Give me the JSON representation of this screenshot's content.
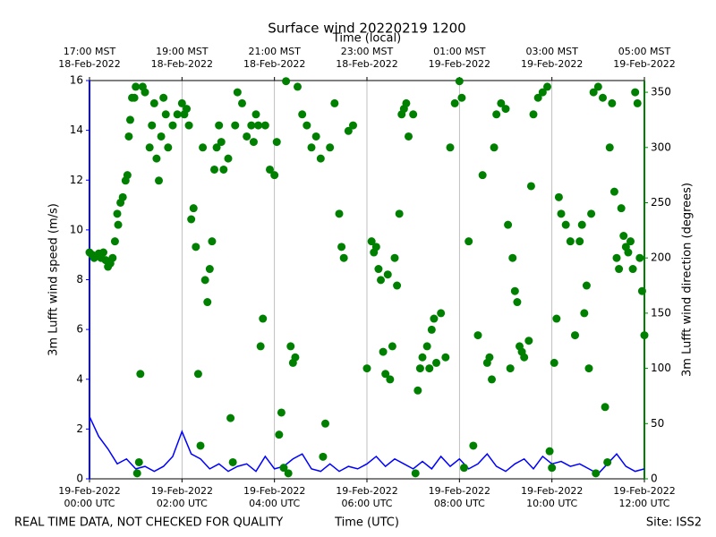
{
  "chart_data": {
    "type": "line_scatter",
    "title": "Surface wind 20220219 1200",
    "xlabel": "Time (UTC)",
    "x2label": "Time (local)",
    "ylabel": "3m Lufft wind speed (m/s)",
    "y2label": "3m Lufft wind direction (degrees)",
    "footer_left": "REAL TIME DATA, NOT CHECKED FOR QUALITY",
    "footer_right": "Site: ISS2",
    "xlim": [
      0,
      12
    ],
    "xticks": [
      {
        "value": 0,
        "label": "19-Feb-2022\n00:00 UTC"
      },
      {
        "value": 2,
        "label": "19-Feb-2022\n02:00 UTC"
      },
      {
        "value": 4,
        "label": "19-Feb-2022\n04:00 UTC"
      },
      {
        "value": 6,
        "label": "19-Feb-2022\n06:00 UTC"
      },
      {
        "value": 8,
        "label": "19-Feb-2022\n08:00 UTC"
      },
      {
        "value": 10,
        "label": "19-Feb-2022\n10:00 UTC"
      },
      {
        "value": 12,
        "label": "19-Feb-2022\n12:00 UTC"
      }
    ],
    "x2ticks": [
      {
        "value": 0,
        "label": "17:00 MST\n18-Feb-2022"
      },
      {
        "value": 2,
        "label": "19:00 MST\n18-Feb-2022"
      },
      {
        "value": 4,
        "label": "21:00 MST\n18-Feb-2022"
      },
      {
        "value": 6,
        "label": "23:00 MST\n18-Feb-2022"
      },
      {
        "value": 8,
        "label": "01:00 MST\n19-Feb-2022"
      },
      {
        "value": 10,
        "label": "03:00 MST\n19-Feb-2022"
      },
      {
        "value": 12,
        "label": "05:00 MST\n19-Feb-2022"
      }
    ],
    "ylim": [
      0,
      16
    ],
    "yticks": [
      0,
      2,
      4,
      6,
      8,
      10,
      12,
      14,
      16
    ],
    "y2lim": [
      0,
      360.6
    ],
    "y2ticks": [
      0,
      50,
      100,
      150,
      200,
      250,
      300,
      350
    ],
    "grid": "x",
    "ycolor": "#0000ff",
    "y2color": "#008000",
    "series": [
      {
        "type": "line",
        "axis": "y",
        "color": "#0000ff",
        "x": [
          0,
          0.2,
          0.4,
          0.6,
          0.8,
          1,
          1.2,
          1.4,
          1.6,
          1.8,
          2,
          2.2,
          2.4,
          2.6,
          2.8,
          3,
          3.2,
          3.4,
          3.6,
          3.8,
          4,
          4.2,
          4.4,
          4.6,
          4.8,
          5,
          5.2,
          5.4,
          5.6,
          5.8,
          6,
          6.2,
          6.4,
          6.6,
          6.8,
          7,
          7.2,
          7.4,
          7.6,
          7.8,
          8,
          8.2,
          8.4,
          8.6,
          8.8,
          9,
          9.2,
          9.4,
          9.6,
          9.8,
          10,
          10.2,
          10.4,
          10.6,
          10.8,
          11,
          11.2,
          11.4,
          11.6,
          11.8,
          12
        ],
        "values": [
          2.5,
          1.7,
          1.2,
          0.6,
          0.8,
          0.4,
          0.5,
          0.3,
          0.5,
          0.9,
          1.9,
          1.0,
          0.8,
          0.4,
          0.6,
          0.3,
          0.5,
          0.6,
          0.3,
          0.9,
          0.4,
          0.5,
          0.8,
          1.0,
          0.4,
          0.3,
          0.6,
          0.3,
          0.5,
          0.4,
          0.6,
          0.9,
          0.5,
          0.8,
          0.6,
          0.4,
          0.7,
          0.4,
          0.9,
          0.5,
          0.8,
          0.4,
          0.6,
          1.0,
          0.5,
          0.3,
          0.6,
          0.8,
          0.4,
          0.9,
          0.6,
          0.7,
          0.5,
          0.6,
          0.4,
          0.2,
          0.6,
          1.0,
          0.5,
          0.3,
          0.4
        ]
      },
      {
        "type": "scatter",
        "axis": "y2",
        "color": "#008000",
        "x": [
          0,
          0.05,
          0.1,
          0.15,
          0.2,
          0.25,
          0.3,
          0.35,
          0.4,
          0.45,
          0.5,
          0.55,
          0.6,
          0.62,
          0.67,
          0.72,
          0.78,
          0.82,
          0.85,
          0.88,
          0.92,
          0.97,
          1,
          1.03,
          1.07,
          1.1,
          1.15,
          1.2,
          1.3,
          1.35,
          1.4,
          1.45,
          1.5,
          1.55,
          1.6,
          1.65,
          1.7,
          1.8,
          1.9,
          2,
          2.05,
          2.1,
          2.15,
          2.2,
          2.25,
          2.3,
          2.35,
          2.4,
          2.45,
          2.5,
          2.55,
          2.6,
          2.65,
          2.7,
          2.75,
          2.8,
          2.85,
          2.9,
          3,
          3.05,
          3.1,
          3.15,
          3.2,
          3.3,
          3.4,
          3.5,
          3.55,
          3.6,
          3.65,
          3.7,
          3.75,
          3.8,
          3.9,
          4,
          4.05,
          4.1,
          4.15,
          4.2,
          4.25,
          4.3,
          4.35,
          4.4,
          4.45,
          4.5,
          4.6,
          4.7,
          4.8,
          4.9,
          5,
          5.05,
          5.1,
          5.2,
          5.3,
          5.4,
          5.45,
          5.5,
          5.6,
          5.7,
          6,
          6.1,
          6.15,
          6.2,
          6.25,
          6.3,
          6.35,
          6.4,
          6.45,
          6.5,
          6.55,
          6.6,
          6.65,
          6.7,
          6.75,
          6.8,
          6.85,
          6.9,
          7,
          7.05,
          7.1,
          7.15,
          7.2,
          7.3,
          7.35,
          7.4,
          7.45,
          7.5,
          7.6,
          7.7,
          7.8,
          7.9,
          8,
          8.05,
          8.1,
          8.2,
          8.3,
          8.4,
          8.5,
          8.6,
          8.65,
          8.7,
          8.75,
          8.8,
          8.9,
          9,
          9.05,
          9.1,
          9.15,
          9.2,
          9.25,
          9.3,
          9.35,
          9.4,
          9.5,
          9.55,
          9.6,
          9.7,
          9.8,
          9.9,
          9.95,
          10,
          10.05,
          10.1,
          10.15,
          10.2,
          10.3,
          10.4,
          10.5,
          10.6,
          10.65,
          10.7,
          10.75,
          10.8,
          10.85,
          10.9,
          10.95,
          11,
          11.1,
          11.15,
          11.2,
          11.25,
          11.3,
          11.35,
          11.4,
          11.45,
          11.5,
          11.55,
          11.6,
          11.65,
          11.7,
          11.75,
          11.8,
          11.85,
          11.9,
          11.95,
          12
        ],
        "values": [
          205,
          203,
          200,
          202,
          204,
          200,
          205,
          198,
          192,
          195,
          200,
          215,
          240,
          230,
          250,
          255,
          270,
          275,
          310,
          325,
          345,
          345,
          355,
          5,
          15,
          95,
          355,
          350,
          300,
          320,
          340,
          290,
          270,
          310,
          345,
          330,
          300,
          320,
          330,
          340,
          330,
          335,
          320,
          235,
          245,
          210,
          95,
          30,
          300,
          180,
          160,
          190,
          215,
          280,
          300,
          320,
          305,
          280,
          290,
          55,
          15,
          320,
          350,
          340,
          310,
          320,
          305,
          330,
          320,
          120,
          145,
          320,
          280,
          275,
          305,
          40,
          60,
          10,
          360,
          5,
          120,
          105,
          110,
          355,
          330,
          320,
          300,
          310,
          290,
          20,
          50,
          300,
          340,
          240,
          210,
          200,
          315,
          320,
          100,
          215,
          205,
          210,
          190,
          180,
          115,
          95,
          185,
          90,
          120,
          200,
          175,
          240,
          330,
          335,
          340,
          310,
          330,
          5,
          80,
          100,
          110,
          120,
          100,
          135,
          145,
          105,
          150,
          110,
          300,
          340,
          360,
          345,
          10,
          215,
          30,
          130,
          275,
          105,
          110,
          90,
          300,
          330,
          340,
          335,
          230,
          100,
          200,
          170,
          160,
          120,
          115,
          110,
          125,
          265,
          330,
          345,
          350,
          355,
          25,
          10,
          105,
          145,
          255,
          240,
          230,
          215,
          130,
          215,
          230,
          150,
          175,
          100,
          240,
          350,
          5,
          355,
          345,
          65,
          15,
          300,
          340,
          260,
          200,
          190,
          245,
          220,
          210,
          205,
          215,
          190,
          350,
          340,
          200,
          170,
          130
        ]
      }
    ]
  }
}
